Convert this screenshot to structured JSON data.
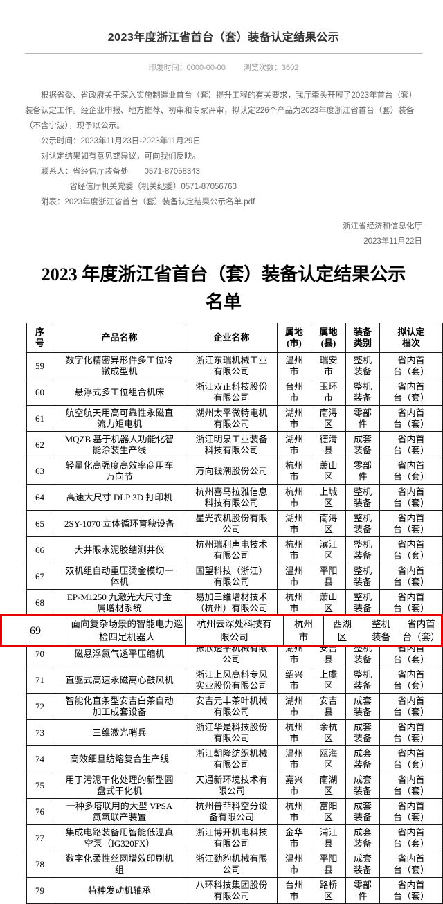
{
  "header": {
    "title": "2023年度浙江省首台（套）装备认定结果公示",
    "meta": {
      "print_time_label": "印发时间：",
      "print_time": "0000-00-00",
      "views_label": "浏览次数：",
      "views": "3602"
    },
    "paragraphs": {
      "intro": "根据省委、省政府关于深入实施制造业首台（套）提升工程的有关要求，我厅牵头开展了2023年首台（套）装备认定工作。经企业申报、地方推荐、初审和专家评审，拟认定226个产品为2023年度浙江省首台（套）装备（不含宁波），现予以公示。",
      "public_period": "公示时间：2023年11月23日-2023年11月29日",
      "feedback": "对认定结果如有意见或异议，可向我们反映。",
      "contact1": "联系人：省经信厅装备处　　0571-87058343",
      "contact2": "省经信厅机关党委（机关纪委）0571-87056763"
    },
    "attachment_label": "附表：",
    "attachment": "2023年度浙江省首台（套）装备认定结果公示名单.pdf",
    "issuer": "浙江省经济和信息化厅",
    "issue_date": "2023年11月22日"
  },
  "document": {
    "title": "2023 年度浙江省首台（套）装备认定结果公示\n名单",
    "table": {
      "headers": [
        "序\n号",
        "产品名称",
        "企业名称",
        "属地\n(市)",
        "属地\n(县)",
        "装备\n类别",
        "拟认定\n档次"
      ],
      "highlight_no": "69",
      "highlight_color": "#e60000",
      "rows": [
        {
          "no": "59",
          "product": "数字化精密异形件多工位冷镦成型机",
          "company": "浙江东瑞机械工业有限公司",
          "city": "温州\n市",
          "county": "瑞安\n市",
          "category": "整机\n装备",
          "grade": "省内首\n台（套）"
        },
        {
          "no": "60",
          "product": "悬浮式多工位组合机床",
          "company": "浙江双正科技股份有限公司",
          "city": "台州\n市",
          "county": "玉环\n市",
          "category": "整机\n装备",
          "grade": "省内首\n台（套）"
        },
        {
          "no": "61",
          "product": "航空航天用高可靠性永磁直流力矩电机",
          "company": "湖州太平微特电机有限公司",
          "city": "湖州\n市",
          "county": "南浔\n区",
          "category": "零部\n件",
          "grade": "省内首\n台（套）"
        },
        {
          "no": "62",
          "product": "MQZB 基于机器人功能化智能涂装生产线",
          "company": "浙江明泉工业装备科技有限公司",
          "city": "湖州\n市",
          "county": "德清\n县",
          "category": "成套\n装备",
          "grade": "省内首\n台（套）"
        },
        {
          "no": "63",
          "product": "轻量化高强度高效率商用车万向节",
          "company": "万向钱潮股份公司",
          "city": "杭州\n市",
          "county": "萧山\n区",
          "category": "零部\n件",
          "grade": "省内首\n台（套）"
        },
        {
          "no": "64",
          "product": "高速大尺寸 DLP 3D 打印机",
          "company": "杭州喜马拉雅信息科技有限公司",
          "city": "杭州\n市",
          "county": "上城\n区",
          "category": "整机\n装备",
          "grade": "省内首\n台（套）"
        },
        {
          "no": "65",
          "product": "2SY-1070 立体循环育秧设备",
          "company": "星光农机股份有限公司",
          "city": "湖州\n市",
          "county": "南浔\n区",
          "category": "整机\n装备",
          "grade": "省内首\n台（套）"
        },
        {
          "no": "66",
          "product": "大井眼水泥胶结测井仪",
          "company": "杭州瑞利声电技术有限公司",
          "city": "杭州\n市",
          "county": "滨江\n区",
          "category": "整机\n装备",
          "grade": "省内首\n台（套）"
        },
        {
          "no": "67",
          "product": "双机组自动重压烫金模切一体机",
          "company": "国望科技（浙江）有限公司",
          "city": "温州\n市",
          "county": "平阳\n县",
          "category": "整机\n装备",
          "grade": "省内首\n台（套）"
        },
        {
          "no": "68",
          "product": "EP-M1250 九激光大尺寸金属增材系统",
          "company": "易加三维增材技术（杭州）有限公司",
          "city": "杭州\n市",
          "county": "萧山\n区",
          "category": "整机\n装备",
          "grade": "省内首\n台（套）"
        },
        {
          "no": "69",
          "product": "面向复杂场景的智能电力巡\n检四足机器人",
          "company": "杭州云深处科技有\n限公司",
          "city": "杭州\n市",
          "county": "西湖\n区",
          "category": "整机\n装备",
          "grade": "省内首\n台（套）"
        },
        {
          "no": "70",
          "product": "磁悬浮氯气透平压缩机",
          "company": "振欣透平机械有限公司",
          "city": "湖州\n市",
          "county": "安吉\n县",
          "category": "整机\n装备",
          "grade": "省内首\n台（套）"
        },
        {
          "no": "71",
          "product": "直驱式高速永磁离心鼓风机",
          "company": "浙江上风高科专风实业股份有限公司",
          "city": "绍兴\n市",
          "county": "上虞\n区",
          "category": "整机\n装备",
          "grade": "省内首\n台（套）"
        },
        {
          "no": "72",
          "product": "智能化直条型安吉白茶自动加工成套设备",
          "company": "安吉元丰茶叶机械有限公司",
          "city": "湖州\n市",
          "county": "安吉\n县",
          "category": "成套\n装备",
          "grade": "省内首\n台（套）"
        },
        {
          "no": "73",
          "product": "三维激光哨兵",
          "company": "浙江华是科技股份有限公司",
          "city": "杭州\n市",
          "county": "余杭\n区",
          "category": "成套\n装备",
          "grade": "省内首\n台（套）"
        },
        {
          "no": "74",
          "product": "高效细旦纺熔复合生产线",
          "company": "浙江朝隆纺织机械有限公司",
          "city": "温州\n市",
          "county": "瓯海\n区",
          "category": "成套\n装备",
          "grade": "省内首\n台（套）"
        },
        {
          "no": "75",
          "product": "用于污泥干化处理的新型圆盘式干化机",
          "company": "天通新环境技术有限公司",
          "city": "嘉兴\n市",
          "county": "南湖\n区",
          "category": "成套\n装备",
          "grade": "省内首\n台（套）"
        },
        {
          "no": "76",
          "product": "一种多塔联用的大型 VPSA 氮氧联产装置",
          "company": "杭州普菲科空分设备有限公司",
          "city": "杭州\n市",
          "county": "富阳\n区",
          "category": "成套\n装备",
          "grade": "省内首\n台（套）"
        },
        {
          "no": "77",
          "product": "集成电路装备用智能低温真空泵（IG320FX）",
          "company": "浙江博开机电科技有限公司",
          "city": "金华\n市",
          "county": "浦江\n县",
          "category": "成套\n装备",
          "grade": "省内首\n台（套）"
        },
        {
          "no": "78",
          "product": "数字化柔性丝网增效印刷机组",
          "company": "浙江劲豹机械有限公司",
          "city": "温州\n市",
          "county": "平阳\n县",
          "category": "成套\n装备",
          "grade": "省内首\n台（套）"
        },
        {
          "no": "79",
          "product": "特种发动机轴承",
          "company": "八环科技集团股份有限公司",
          "city": "台州\n市",
          "county": "路桥\n区",
          "category": "零部\n件",
          "grade": "省内首\n台（套）"
        }
      ]
    }
  }
}
